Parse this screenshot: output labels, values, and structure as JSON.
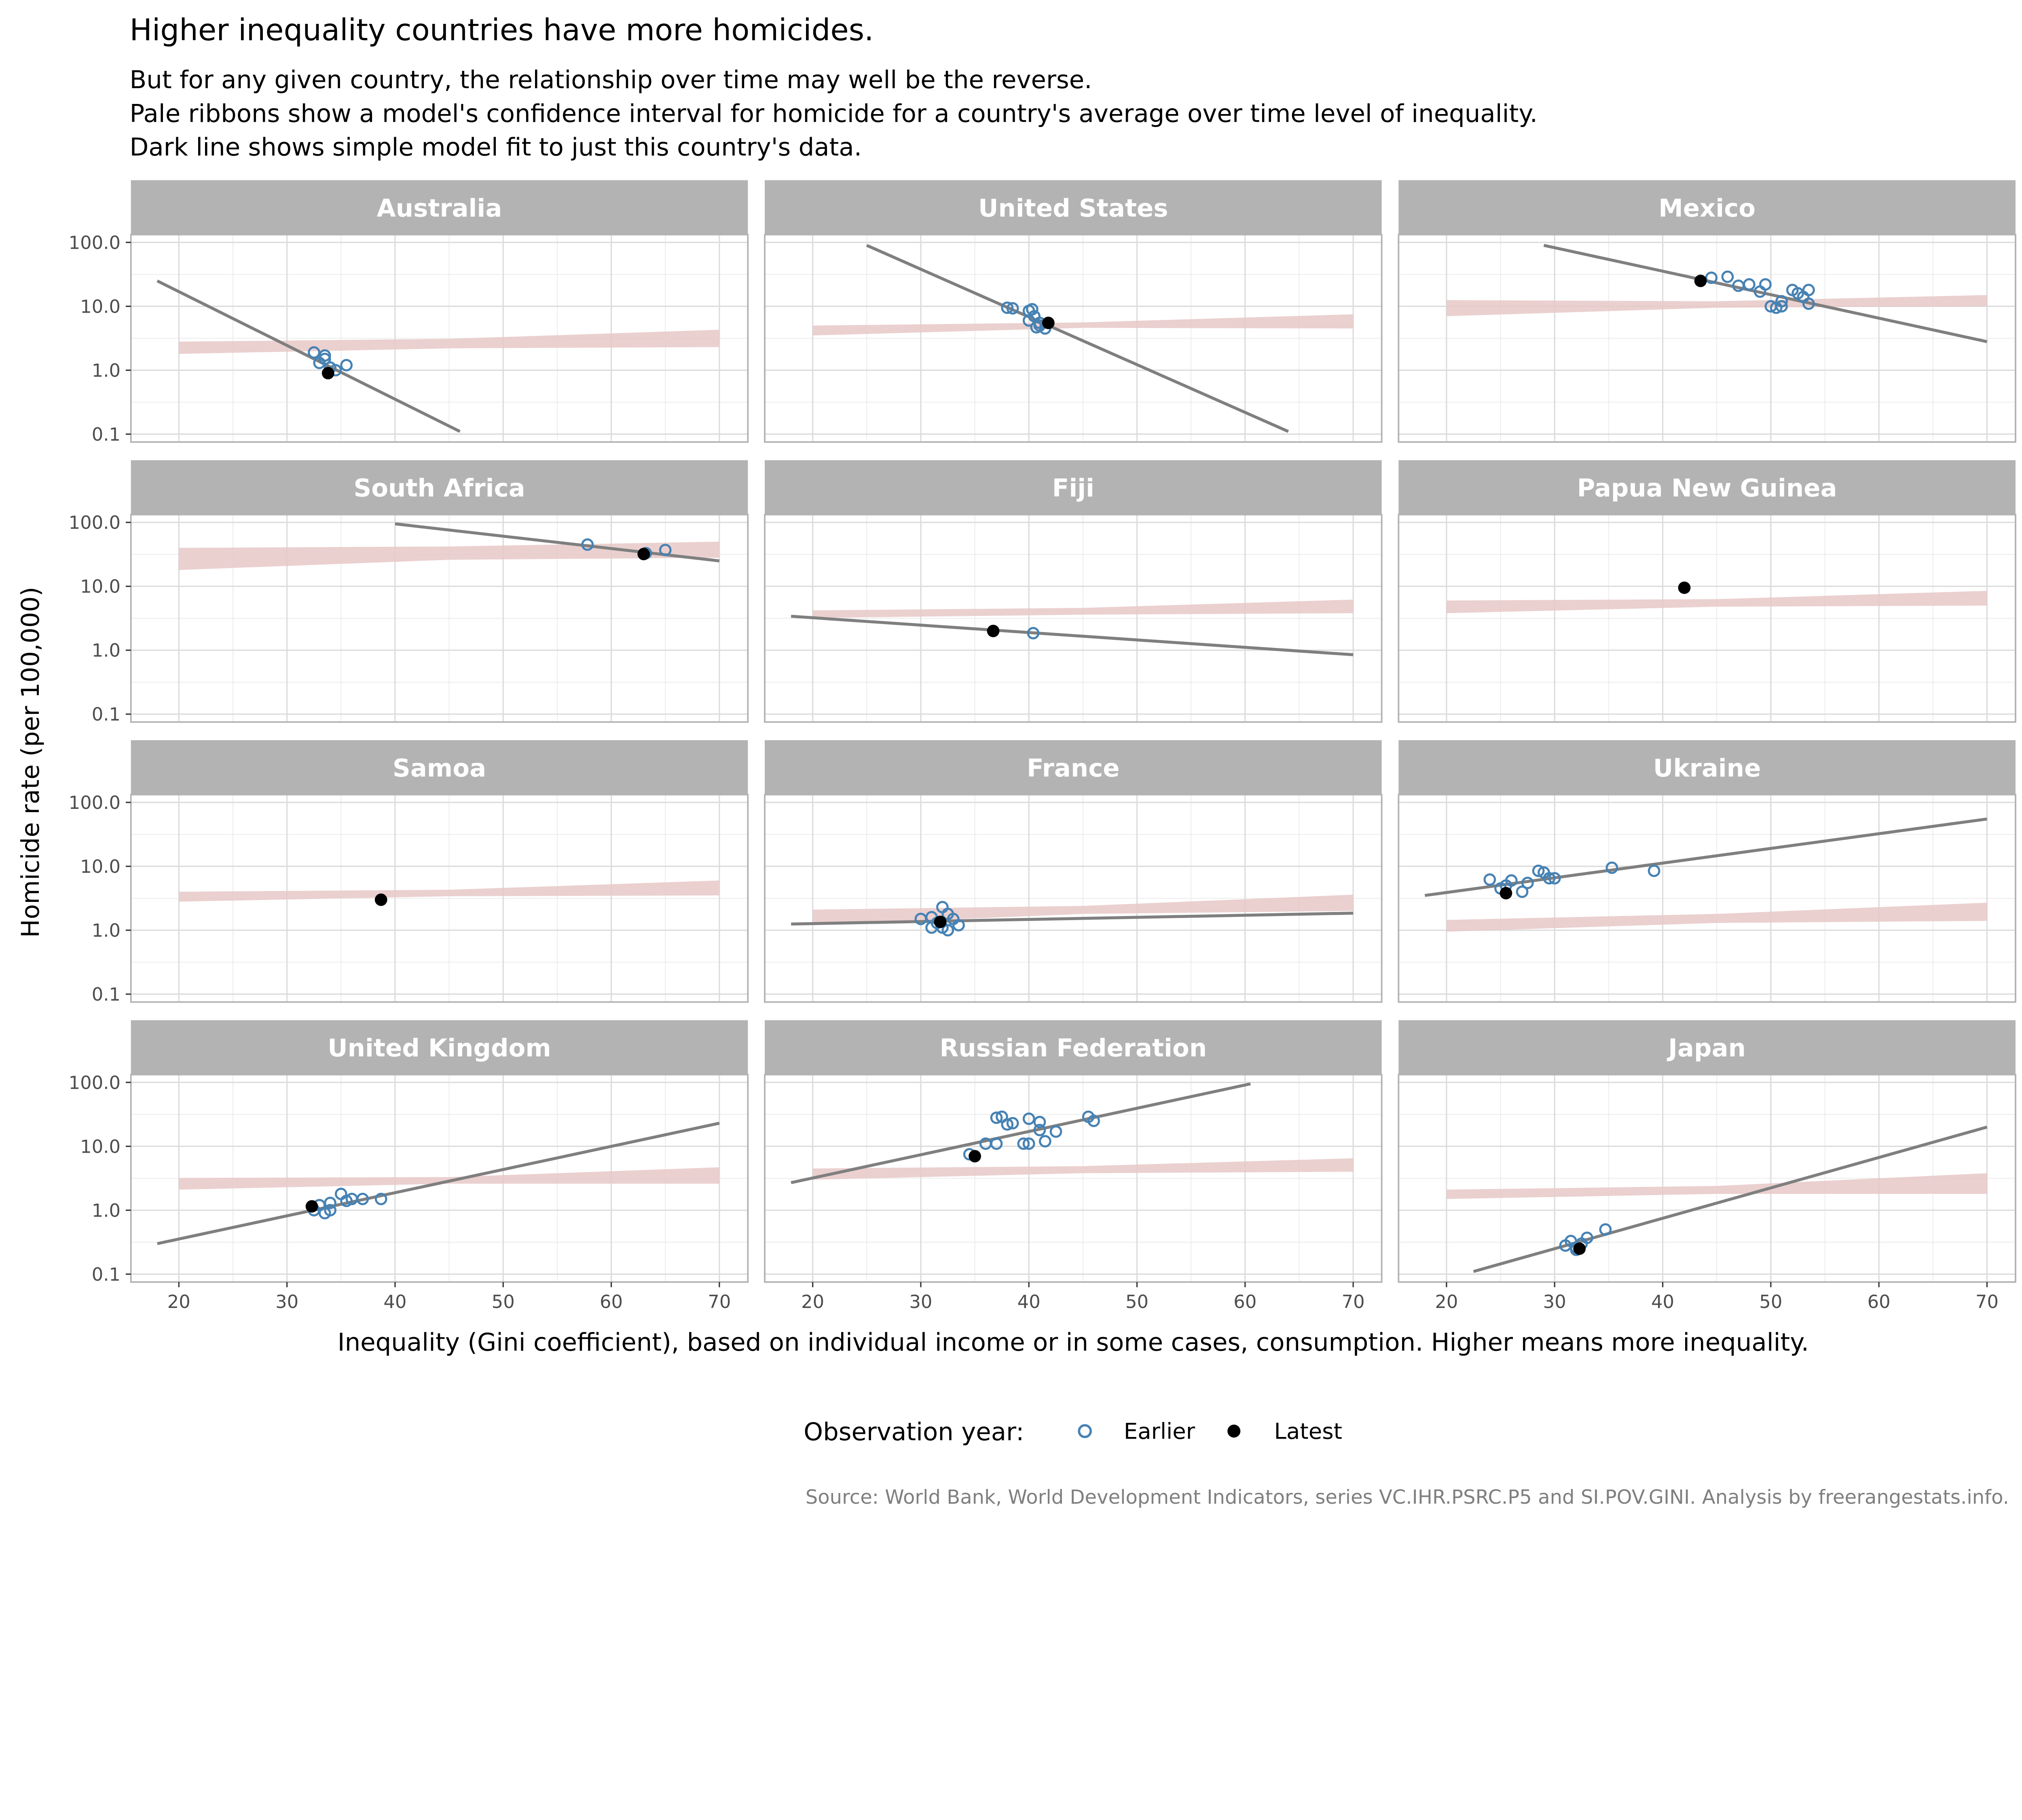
{
  "title": "Higher inequality countries have more homicides.",
  "subtitle": [
    "But for any given country, the relationship over time may well be the reverse.",
    "Pale ribbons show a model's confidence interval for homicide for a country's average over time level of inequality.",
    "Dark line shows simple model fit to just this country's data."
  ],
  "caption": "Source: World Bank, World Development Indicators, series VC.IHR.PSRC.P5 and SI.POV.GINI. Analysis by freerangestats.info.",
  "colors": {
    "earlier": "#4682b4",
    "latest": "#000000",
    "fit_line": "#7f7f7f",
    "ribbon": "#e8c8c8",
    "strip": "#b3b3b3"
  },
  "chart_data": {
    "type": "scatter",
    "facets": "wrap 3 columns",
    "xlabel": "Inequality (Gini coefficient), based on individual income or in some cases, consumption. Higher means more inequality.",
    "ylabel": "Homicide rate (per 100,000)",
    "xlim": [
      15.5,
      72
    ],
    "ylim": [
      0.08,
      150
    ],
    "yscale": "log",
    "xticks": [
      "20",
      "30",
      "40",
      "50",
      "60",
      "70"
    ],
    "xtick_values": [
      20,
      30,
      40,
      50,
      60,
      70
    ],
    "yticks": [
      "100.0",
      "10.0",
      "1.0",
      "0.1"
    ],
    "ytick_values": [
      100,
      10,
      1,
      0.1
    ],
    "grid": true,
    "legend": {
      "title": "Observation year:",
      "position": "bottom",
      "entries": [
        "Earlier",
        "Latest"
      ]
    },
    "panels": [
      {
        "name": "Australia",
        "line": [
          [
            18,
            25
          ],
          [
            46,
            0.11
          ]
        ],
        "ribbon": {
          "x": [
            20,
            45,
            70
          ],
          "low": [
            1.8,
            2.2,
            2.3
          ],
          "high": [
            2.8,
            3.1,
            4.3
          ]
        },
        "earlier": [
          [
            32.5,
            1.9
          ],
          [
            33.5,
            1.7
          ],
          [
            33.5,
            1.5
          ],
          [
            33,
            1.3
          ],
          [
            34.5,
            1.0
          ],
          [
            35.5,
            1.2
          ],
          [
            34,
            1.1
          ]
        ],
        "latest": [
          33.8,
          0.9
        ]
      },
      {
        "name": "United States",
        "line": [
          [
            25,
            90
          ],
          [
            64,
            0.11
          ]
        ],
        "ribbon": {
          "x": [
            20,
            45,
            70
          ],
          "low": [
            3.5,
            4.6,
            4.5
          ],
          "high": [
            5,
            5.6,
            7.5
          ]
        },
        "earlier": [
          [
            38,
            9.5
          ],
          [
            38.5,
            9.3
          ],
          [
            40,
            8.5
          ],
          [
            40.3,
            9
          ],
          [
            40.5,
            7
          ],
          [
            40,
            6
          ],
          [
            41,
            5
          ],
          [
            41.5,
            4.5
          ],
          [
            41,
            5.5
          ],
          [
            40.7,
            4.7
          ]
        ],
        "latest": [
          41.8,
          5.5
        ]
      },
      {
        "name": "Mexico",
        "line": [
          [
            29,
            90
          ],
          [
            70,
            2.8
          ]
        ],
        "ribbon": {
          "x": [
            20,
            45,
            70
          ],
          "low": [
            7,
            9.5,
            10
          ],
          "high": [
            12.5,
            12,
            15
          ]
        },
        "earlier": [
          [
            44.5,
            28
          ],
          [
            46,
            29
          ],
          [
            47,
            21
          ],
          [
            48,
            22
          ],
          [
            49,
            17
          ],
          [
            49.5,
            22
          ],
          [
            50,
            10
          ],
          [
            50.5,
            9.5
          ],
          [
            51,
            10
          ],
          [
            51,
            12
          ],
          [
            52,
            18
          ],
          [
            52.5,
            16
          ],
          [
            53,
            14
          ],
          [
            53.5,
            18
          ],
          [
            53.5,
            11
          ]
        ],
        "latest": [
          43.5,
          25
        ]
      },
      {
        "name": "South Africa",
        "line": [
          [
            40,
            95
          ],
          [
            70,
            25
          ]
        ],
        "ribbon": {
          "x": [
            20,
            45,
            70
          ],
          "low": [
            18,
            26,
            28
          ],
          "high": [
            40,
            42,
            50
          ]
        },
        "earlier": [
          [
            57.8,
            45
          ],
          [
            63.2,
            33
          ],
          [
            65,
            37
          ]
        ],
        "latest": [
          63,
          32
        ]
      },
      {
        "name": "Fiji",
        "line": [
          [
            18,
            3.4
          ],
          [
            70,
            0.85
          ]
        ],
        "ribbon": {
          "x": [
            20,
            45,
            70
          ],
          "low": [
            3.2,
            3.6,
            3.8
          ],
          "high": [
            4.2,
            4.6,
            6.2
          ]
        },
        "earlier": [
          [
            40.4,
            1.85
          ]
        ],
        "latest": [
          36.7,
          2.0
        ]
      },
      {
        "name": "Papua New Guinea",
        "line": null,
        "ribbon": {
          "x": [
            20,
            45,
            70
          ],
          "low": [
            3.8,
            4.8,
            5
          ],
          "high": [
            6,
            6.3,
            8.5
          ]
        },
        "earlier": [],
        "latest": [
          42,
          9.5
        ]
      },
      {
        "name": "Samoa",
        "line": null,
        "ribbon": {
          "x": [
            20,
            45,
            70
          ],
          "low": [
            2.8,
            3.4,
            3.5
          ],
          "high": [
            4,
            4.3,
            6
          ]
        },
        "earlier": [],
        "latest": [
          38.7,
          3.0
        ]
      },
      {
        "name": "France",
        "line": [
          [
            18,
            1.25
          ],
          [
            70,
            1.85
          ]
        ],
        "ribbon": {
          "x": [
            20,
            45,
            70
          ],
          "low": [
            1.2,
            1.8,
            2
          ],
          "high": [
            2.1,
            2.4,
            3.6
          ]
        },
        "earlier": [
          [
            30,
            1.5
          ],
          [
            31,
            1.1
          ],
          [
            31.5,
            1.3
          ],
          [
            32,
            2.3
          ],
          [
            32.5,
            1.8
          ],
          [
            33,
            1.5
          ],
          [
            33.5,
            1.2
          ],
          [
            32,
            1.1
          ],
          [
            31,
            1.6
          ],
          [
            32.5,
            1.0
          ]
        ],
        "latest": [
          31.8,
          1.35
        ]
      },
      {
        "name": "Ukraine",
        "line": [
          [
            18,
            3.5
          ],
          [
            70,
            55
          ]
        ],
        "ribbon": {
          "x": [
            20,
            45,
            70
          ],
          "low": [
            0.95,
            1.3,
            1.4
          ],
          "high": [
            1.45,
            1.8,
            2.7
          ]
        },
        "earlier": [
          [
            24,
            6.2
          ],
          [
            25,
            4.5
          ],
          [
            25.5,
            5
          ],
          [
            26,
            6
          ],
          [
            27,
            4
          ],
          [
            27.5,
            5.5
          ],
          [
            28.5,
            8.5
          ],
          [
            29,
            8
          ],
          [
            29.5,
            6.5
          ],
          [
            30,
            6.5
          ],
          [
            35.3,
            9.5
          ],
          [
            39.2,
            8.5
          ]
        ],
        "latest": [
          25.5,
          3.8
        ]
      },
      {
        "name": "United Kingdom",
        "line": [
          [
            18,
            0.3
          ],
          [
            70,
            23
          ]
        ],
        "ribbon": {
          "x": [
            20,
            45,
            70
          ],
          "low": [
            2.1,
            2.6,
            2.6
          ],
          "high": [
            3.2,
            3.3,
            4.7
          ]
        },
        "earlier": [
          [
            32.5,
            1.0
          ],
          [
            33,
            1.2
          ],
          [
            34,
            1.3
          ],
          [
            35,
            1.8
          ],
          [
            35.5,
            1.4
          ],
          [
            36,
            1.5
          ],
          [
            37,
            1.5
          ],
          [
            38.7,
            1.5
          ],
          [
            34,
            1.0
          ],
          [
            33.5,
            0.9
          ]
        ],
        "latest": [
          32.3,
          1.15
        ]
      },
      {
        "name": "Russian Federation",
        "line": [
          [
            18,
            2.7
          ],
          [
            60.5,
            95
          ]
        ],
        "ribbon": {
          "x": [
            20,
            45,
            70
          ],
          "low": [
            3,
            3.8,
            4
          ],
          "high": [
            4.5,
            4.9,
            6.5
          ]
        },
        "earlier": [
          [
            34.5,
            7.5
          ],
          [
            36,
            11
          ],
          [
            37,
            11
          ],
          [
            37,
            28
          ],
          [
            37.5,
            29
          ],
          [
            38,
            22
          ],
          [
            38.5,
            23
          ],
          [
            39.5,
            11
          ],
          [
            40,
            11
          ],
          [
            40,
            27
          ],
          [
            41,
            24
          ],
          [
            41,
            18
          ],
          [
            41.5,
            12
          ],
          [
            42.5,
            17
          ],
          [
            45.5,
            29
          ],
          [
            46,
            25
          ]
        ],
        "latest": [
          35,
          7
        ]
      },
      {
        "name": "Japan",
        "line": [
          [
            22.5,
            0.11
          ],
          [
            70,
            20
          ]
        ],
        "ribbon": {
          "x": [
            20,
            45,
            70
          ],
          "low": [
            1.5,
            1.8,
            1.8
          ],
          "high": [
            2.1,
            2.4,
            3.8
          ]
        },
        "earlier": [
          [
            31,
            0.28
          ],
          [
            31.5,
            0.33
          ],
          [
            32,
            0.26
          ],
          [
            32.5,
            0.3
          ],
          [
            33,
            0.37
          ],
          [
            34.7,
            0.5
          ],
          [
            32,
            0.24
          ]
        ],
        "latest": [
          32.3,
          0.25
        ]
      }
    ]
  }
}
